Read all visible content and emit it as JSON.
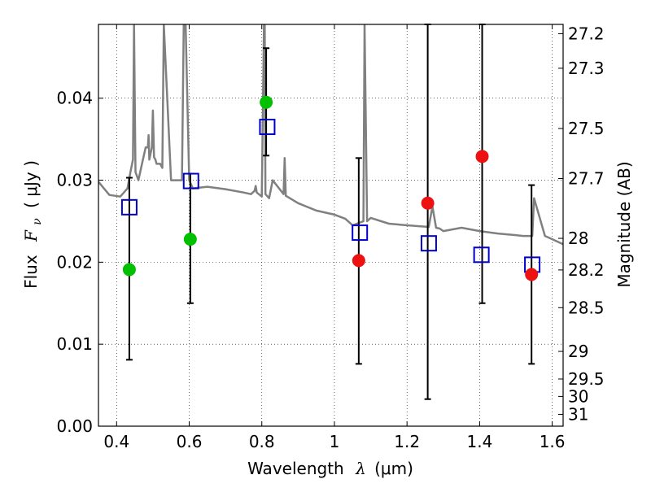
{
  "chart_data": {
    "type": "scatter",
    "xlabel": {
      "main": "Wavelength",
      "symbol": "λ",
      "unit": "(μm)"
    },
    "ylabel": {
      "main": "Flux",
      "symbol": "F",
      "subscript": "ν",
      "unit": "( μJy )"
    },
    "ylabel_right": "Magnitude (AB)",
    "xlim": [
      0.35,
      1.63
    ],
    "ylim": [
      0.0,
      0.049
    ],
    "grid": true,
    "x_ticks": [
      0.4,
      0.6,
      0.8,
      1.0,
      1.2,
      1.4,
      1.6
    ],
    "x_tick_labels": [
      "0.4",
      "0.6",
      "0.8",
      "1",
      "1.2",
      "1.4",
      "1.6"
    ],
    "y_ticks": [
      0.0,
      0.01,
      0.02,
      0.03,
      0.04
    ],
    "y_tick_labels": [
      "0.00",
      "0.01",
      "0.02",
      "0.03",
      "0.04"
    ],
    "right_ticks": [
      {
        "label": "27.2",
        "mag": 27.2
      },
      {
        "label": "27.3",
        "mag": 27.3
      },
      {
        "label": "27.5",
        "mag": 27.5
      },
      {
        "label": "27.7",
        "mag": 27.7
      },
      {
        "label": "28",
        "mag": 28.0
      },
      {
        "label": "28.2",
        "mag": 28.2
      },
      {
        "label": "28.5",
        "mag": 28.5
      },
      {
        "label": "29",
        "mag": 29.0
      },
      {
        "label": "29.5",
        "mag": 29.5
      },
      {
        "label": "30",
        "mag": 30.0
      },
      {
        "label": "31",
        "mag": 31.0
      }
    ],
    "colors": {
      "spectrum": "#808080",
      "model_markers": "#0000cc",
      "green_points": "#00c000",
      "red_points": "#ee1111",
      "errorbars": "#000000",
      "grid": "#000000"
    },
    "series": [
      {
        "marker": "open-square",
        "color": "#0000cc",
        "x": [
          0.435,
          0.605,
          0.815,
          1.07,
          1.26,
          1.405,
          1.545
        ],
        "y": [
          0.0267,
          0.0299,
          0.0365,
          0.0236,
          0.0223,
          0.0209,
          0.0197
        ]
      },
      {
        "marker": "filled-circle",
        "color": "#00c000",
        "x": [
          0.435,
          0.603,
          0.812
        ],
        "y": [
          0.0191,
          0.0228,
          0.0395
        ],
        "yerr_low": [
          0.0081,
          0.015,
          0.033
        ],
        "yerr_high": [
          0.0303,
          0.0308,
          0.0461
        ]
      },
      {
        "marker": "filled-circle",
        "color": "#ee1111",
        "x": [
          1.067,
          1.257,
          1.407,
          1.543
        ],
        "y": [
          0.0202,
          0.0272,
          0.0329,
          0.0185
        ],
        "yerr_low": [
          0.0076,
          0.0033,
          0.015,
          0.0076
        ],
        "yerr_high": [
          0.0327,
          0.049,
          0.049,
          0.0294
        ]
      },
      {
        "marker": "line",
        "color": "#808080",
        "x": [
          0.35,
          0.38,
          0.41,
          0.43,
          0.438,
          0.445,
          0.448,
          0.452,
          0.46,
          0.47,
          0.48,
          0.486,
          0.488,
          0.49,
          0.497,
          0.5,
          0.503,
          0.507,
          0.51,
          0.52,
          0.526,
          0.53,
          0.55,
          0.58,
          0.585,
          0.59,
          0.6,
          0.61,
          0.65,
          0.7,
          0.75,
          0.77,
          0.78,
          0.783,
          0.786,
          0.8,
          0.806,
          0.808,
          0.81,
          0.82,
          0.83,
          0.86,
          0.863,
          0.866,
          0.9,
          0.95,
          1.0,
          1.03,
          1.05,
          1.08,
          1.083,
          1.09,
          1.1,
          1.15,
          1.2,
          1.26,
          1.27,
          1.28,
          1.29,
          1.3,
          1.35,
          1.4,
          1.45,
          1.5,
          1.52,
          1.545,
          1.55,
          1.58,
          1.6,
          1.63
        ],
        "y": [
          0.0298,
          0.0282,
          0.028,
          0.029,
          0.031,
          0.0325,
          0.049,
          0.031,
          0.03,
          0.032,
          0.034,
          0.034,
          0.0355,
          0.0325,
          0.034,
          0.0385,
          0.0328,
          0.0325,
          0.032,
          0.032,
          0.0315,
          0.049,
          0.03,
          0.03,
          0.049,
          0.049,
          0.03,
          0.029,
          0.0292,
          0.0289,
          0.0285,
          0.0283,
          0.0287,
          0.0293,
          0.0285,
          0.028,
          0.049,
          0.049,
          0.0283,
          0.0278,
          0.03,
          0.0283,
          0.0327,
          0.0281,
          0.0272,
          0.0263,
          0.0258,
          0.0253,
          0.0245,
          0.025,
          0.049,
          0.025,
          0.0254,
          0.0247,
          0.0245,
          0.0243,
          0.0268,
          0.0242,
          0.0241,
          0.0238,
          0.0242,
          0.0238,
          0.0235,
          0.0233,
          0.0232,
          0.0232,
          0.0278,
          0.0232,
          0.0228,
          0.0222
        ]
      }
    ]
  }
}
